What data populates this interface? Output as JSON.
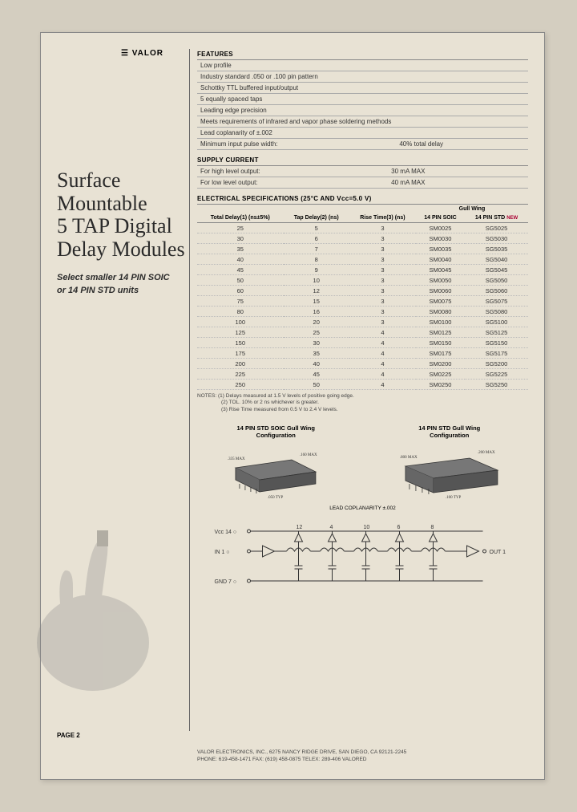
{
  "brand": "☰ VALOR",
  "title_l1": "Surface",
  "title_l2": "Mountable",
  "title_l3": "5 TAP Digital",
  "title_l4": "Delay Modules",
  "subtitle_l1": "Select smaller 14 PIN SOIC",
  "subtitle_l2": "or 14 PIN STD units",
  "features": {
    "head": "FEATURES",
    "rows": [
      [
        "Low profile",
        ""
      ],
      [
        "Industry standard .050 or .100 pin pattern",
        ""
      ],
      [
        "Schottky TTL buffered input/output",
        ""
      ],
      [
        "5 equally spaced taps",
        ""
      ],
      [
        "Leading edge precision",
        ""
      ],
      [
        "Meets requirements of infrared and vapor phase soldering methods",
        ""
      ],
      [
        "Lead coplanarity of ±.002",
        ""
      ],
      [
        "Minimum input pulse width:",
        "40% total delay"
      ]
    ]
  },
  "supply": {
    "head": "SUPPLY CURRENT",
    "rows": [
      [
        "For high level output:",
        "30 mA MAX"
      ],
      [
        "For low level output:",
        "40 mA MAX"
      ]
    ]
  },
  "specs": {
    "head": "ELECTRICAL SPECIFICATIONS (25°C AND Vcc=5.0 V)",
    "grp_gw": "Gull Wing",
    "cols": [
      "Total Delay(1)\n(ns±5%)",
      "Tap Delay(2)\n(ns)",
      "Rise Time(3)\n(ns)",
      "14 PIN SOIC",
      "14 PIN STD"
    ],
    "new": "NEW",
    "rows": [
      [
        "25",
        "5",
        "3",
        "SM0025",
        "SG5025"
      ],
      [
        "30",
        "6",
        "3",
        "SM0030",
        "SG5030"
      ],
      [
        "35",
        "7",
        "3",
        "SM0035",
        "SG5035"
      ],
      [
        "40",
        "8",
        "3",
        "SM0040",
        "SG5040"
      ],
      [
        "45",
        "9",
        "3",
        "SM0045",
        "SG5045"
      ],
      [
        "50",
        "10",
        "3",
        "SM0050",
        "SG5050"
      ],
      [
        "60",
        "12",
        "3",
        "SM0060",
        "SG5060"
      ],
      [
        "75",
        "15",
        "3",
        "SM0075",
        "SG5075"
      ],
      [
        "80",
        "16",
        "3",
        "SM0080",
        "SG5080"
      ],
      [
        "100",
        "20",
        "3",
        "SM0100",
        "SG5100"
      ],
      [
        "125",
        "25",
        "4",
        "SM0125",
        "SG5125"
      ],
      [
        "150",
        "30",
        "4",
        "SM0150",
        "SG5150"
      ],
      [
        "175",
        "35",
        "4",
        "SM0175",
        "SG5175"
      ],
      [
        "200",
        "40",
        "4",
        "SM0200",
        "SG5200"
      ],
      [
        "225",
        "45",
        "4",
        "SM0225",
        "SG5225"
      ],
      [
        "250",
        "50",
        "4",
        "SM0250",
        "SG5250"
      ]
    ]
  },
  "notes": {
    "n0": "NOTES: (1) Delays measured at 1.5 V levels of positive going edge.",
    "n1": "(2) TOL. 10% or 2 ns whichever is greater.",
    "n2": "(3) Rise Time measured from 0.5 V to 2.4 V levels."
  },
  "pkg1": {
    "title": "14 PIN STD SOIC Gull Wing\nConfiguration"
  },
  "pkg2": {
    "title": "14 PIN STD Gull Wing\nConfiguration"
  },
  "schem": {
    "vcc": "Vcc 14",
    "in": "IN  1",
    "gnd": "GND 7",
    "out": "OUT 1",
    "pins": [
      "12",
      "4",
      "10",
      "6",
      "8"
    ]
  },
  "pagenum": "PAGE 2",
  "footer_l1": "VALOR ELECTRONICS, INC., 6275 NANCY RIDGE DRIVE, SAN DIEGO, CA 92121-2245",
  "footer_l2": "PHONE: 619-458-1471   FAX: (619) 458-0875   TELEX: 289-406 VALORED"
}
